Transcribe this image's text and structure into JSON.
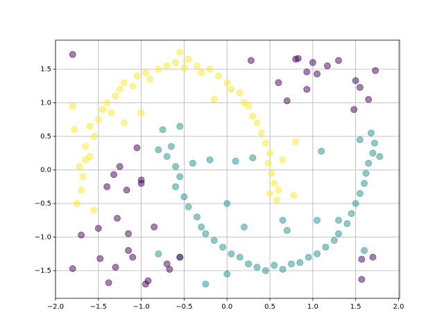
{
  "chart_data": {
    "type": "scatter",
    "xlim": [
      -2.0,
      2.012
    ],
    "ylim": [
      -1.912,
      1.933
    ],
    "xticks": [
      {
        "value": -2.0,
        "label": "−2.0"
      },
      {
        "value": -1.5,
        "label": "−1.5"
      },
      {
        "value": -1.0,
        "label": "−1.0"
      },
      {
        "value": -0.5,
        "label": "−0.5"
      },
      {
        "value": 0.0,
        "label": "0.0"
      },
      {
        "value": 0.5,
        "label": "0.5"
      },
      {
        "value": 1.0,
        "label": "1.0"
      },
      {
        "value": 1.5,
        "label": "1.5"
      },
      {
        "value": 2.0,
        "label": "2.0"
      }
    ],
    "yticks": [
      {
        "value": -1.5,
        "label": "−1.5"
      },
      {
        "value": -1.0,
        "label": "−1.0"
      },
      {
        "value": -0.5,
        "label": "−0.5"
      },
      {
        "value": 0.0,
        "label": "0.0"
      },
      {
        "value": 0.5,
        "label": "0.5"
      },
      {
        "value": 1.0,
        "label": "1.0"
      },
      {
        "value": 1.5,
        "label": "1.5"
      }
    ],
    "grid": true,
    "series": [
      {
        "color": "#fde725",
        "x": [
          -1.75,
          -1.7,
          -1.68,
          -1.72,
          -1.6,
          -1.65,
          -1.55,
          -1.6,
          -1.5,
          -1.45,
          -1.4,
          -1.35,
          -1.3,
          -1.25,
          -1.2,
          -1.1,
          -1.05,
          -0.95,
          -0.9,
          -0.8,
          -0.7,
          -0.6,
          -0.5,
          -0.45,
          -0.35,
          -0.3,
          -0.2,
          -0.1,
          0.0,
          0.05,
          0.15,
          0.2,
          0.25,
          0.3,
          0.35,
          0.4,
          0.45,
          0.5,
          0.48,
          0.52,
          0.55,
          0.6,
          0.58,
          0.5,
          -1.8,
          -1.78,
          -1.0,
          -0.55,
          0.8,
          0.65,
          -1.55,
          -1.2,
          -0.15,
          0.78,
          -1.65
        ],
        "values": [
          -0.5,
          -0.3,
          -0.1,
          0.05,
          0.2,
          0.35,
          0.5,
          0.65,
          0.75,
          0.9,
          1.0,
          0.85,
          1.1,
          1.2,
          1.3,
          1.25,
          1.4,
          1.45,
          1.35,
          1.5,
          1.55,
          1.6,
          1.52,
          1.65,
          1.55,
          1.45,
          1.5,
          1.4,
          1.3,
          1.2,
          1.15,
          1.0,
          0.95,
          0.8,
          0.7,
          0.55,
          0.4,
          0.25,
          0.1,
          -0.05,
          -0.2,
          -0.3,
          -0.45,
          -0.35,
          0.95,
          0.6,
          0.85,
          1.75,
          0.42,
          0.15,
          -0.6,
          0.7,
          1.05,
          -0.38,
          0.15
        ]
      },
      {
        "color": "#21918c",
        "x": [
          -0.65,
          -0.7,
          -0.6,
          -0.55,
          -0.6,
          -0.5,
          -0.45,
          -0.35,
          -0.3,
          -0.25,
          -0.15,
          -0.05,
          0.05,
          0.15,
          0.25,
          0.35,
          0.45,
          0.55,
          0.65,
          0.75,
          0.85,
          0.95,
          1.05,
          1.15,
          1.25,
          1.3,
          1.4,
          1.45,
          1.5,
          1.55,
          1.6,
          1.62,
          1.65,
          1.7,
          1.72,
          1.68,
          1.78,
          1.55,
          -0.55,
          -0.8,
          -0.75,
          -0.4,
          -0.2,
          0.1,
          0.3,
          0.0,
          0.65,
          1.1,
          1.05,
          -0.25,
          0.2,
          -0.55,
          -0.8,
          0.0,
          1.6,
          0.7,
          1.3
        ],
        "values": [
          0.35,
          0.2,
          0.05,
          -0.1,
          -0.25,
          -0.4,
          -0.55,
          -0.7,
          -0.85,
          -0.95,
          -1.05,
          -1.15,
          -1.25,
          -1.3,
          -1.4,
          -1.45,
          -1.5,
          -1.42,
          -1.48,
          -1.4,
          -1.38,
          -1.3,
          -1.25,
          -1.15,
          -1.05,
          -0.95,
          -0.8,
          -0.65,
          -0.5,
          -0.35,
          -0.2,
          -0.05,
          0.1,
          0.25,
          0.4,
          0.55,
          0.2,
          0.45,
          0.65,
          0.3,
          0.6,
          0.1,
          0.15,
          0.13,
          0.18,
          -0.5,
          -0.75,
          0.28,
          -0.75,
          -1.7,
          -0.85,
          -1.3,
          -1.25,
          -1.55,
          -1.2,
          -0.9,
          -0.75
        ]
      },
      {
        "color": "#440154",
        "x": [
          -1.8,
          0.28,
          0.8,
          0.83,
          1.0,
          1.17,
          1.3,
          1.05,
          0.93,
          1.5,
          1.73,
          0.6,
          0.93,
          0.7,
          1.65,
          1.48,
          1.55,
          -1.05,
          -1.25,
          -1.0,
          -1.0,
          -1.32,
          -1.17,
          -1.4,
          -0.85,
          -1.28,
          -1.5,
          -1.7,
          -1.15,
          -1.15,
          -1.48,
          -1.3,
          -1.1,
          -1.8,
          -0.92,
          -0.95,
          -1.38,
          -0.7,
          -0.67,
          -0.55,
          1.57,
          1.7,
          1.57
        ],
        "values": [
          1.72,
          1.63,
          1.65,
          1.66,
          1.6,
          1.55,
          1.63,
          1.43,
          1.46,
          1.33,
          1.48,
          1.3,
          1.2,
          1.03,
          1.05,
          0.9,
          1.23,
          0.33,
          0.05,
          -0.15,
          -0.2,
          -0.07,
          -0.3,
          -0.25,
          -0.85,
          -0.72,
          -0.87,
          -0.97,
          -0.95,
          -1.2,
          -1.32,
          -1.45,
          -1.3,
          -1.47,
          -1.65,
          -1.7,
          -1.68,
          -1.4,
          -1.48,
          -1.3,
          -1.33,
          -1.3,
          -1.63
        ]
      }
    ]
  }
}
